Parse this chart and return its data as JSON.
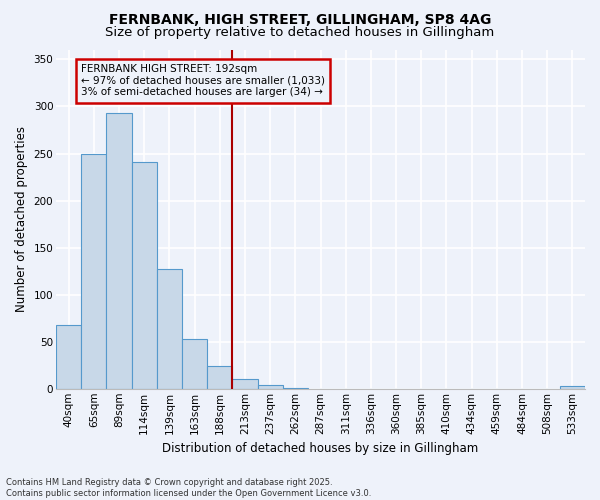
{
  "title": "FERNBANK, HIGH STREET, GILLINGHAM, SP8 4AG",
  "subtitle": "Size of property relative to detached houses in Gillingham",
  "xlabel": "Distribution of detached houses by size in Gillingham",
  "ylabel": "Number of detached properties",
  "footnote": "Contains HM Land Registry data © Crown copyright and database right 2025.\nContains public sector information licensed under the Open Government Licence v3.0.",
  "bar_labels": [
    "40sqm",
    "65sqm",
    "89sqm",
    "114sqm",
    "139sqm",
    "163sqm",
    "188sqm",
    "213sqm",
    "237sqm",
    "262sqm",
    "287sqm",
    "311sqm",
    "336sqm",
    "360sqm",
    "385sqm",
    "410sqm",
    "434sqm",
    "459sqm",
    "484sqm",
    "508sqm",
    "533sqm"
  ],
  "bar_values": [
    68,
    250,
    293,
    241,
    127,
    53,
    24,
    10,
    4,
    1,
    0,
    0,
    0,
    0,
    0,
    0,
    0,
    0,
    0,
    0,
    3
  ],
  "bar_color": "#c8d8e8",
  "bar_edge_color": "#5599cc",
  "vline_color": "#aa0000",
  "annotation_text": "FERNBANK HIGH STREET: 192sqm\n← 97% of detached houses are smaller (1,033)\n3% of semi-detached houses are larger (34) →",
  "annotation_box_color": "#cc0000",
  "ylim": [
    0,
    360
  ],
  "yticks": [
    0,
    50,
    100,
    150,
    200,
    250,
    300,
    350
  ],
  "background_color": "#eef2fa",
  "grid_color": "#ffffff",
  "title_fontsize": 10,
  "subtitle_fontsize": 9.5,
  "axis_label_fontsize": 8.5,
  "tick_fontsize": 7.5,
  "annot_fontsize": 7.5,
  "footnote_fontsize": 6
}
